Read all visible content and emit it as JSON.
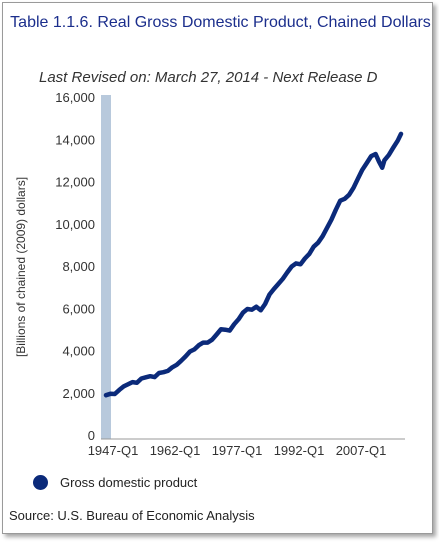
{
  "chart_data": {
    "type": "line",
    "title": "Table 1.1.6. Real Gross Domestic Product, Chained Dollars",
    "subtitle": "Last Revised on: March 27, 2014 - Next Release D",
    "ylabel": "[Billions of chained (2009) dollars]",
    "xlabel": "",
    "ylim": [
      0,
      16000
    ],
    "yticks": [
      "0",
      "2,000",
      "4,000",
      "6,000",
      "8,000",
      "10,000",
      "12,000",
      "14,000",
      "16,000"
    ],
    "xticks": [
      "1947-Q1",
      "1962-Q1",
      "1977-Q1",
      "1992-Q1",
      "2007-Q1"
    ],
    "xlim": [
      1947,
      2013.75
    ],
    "grid": false,
    "legend_position": "bottom-left",
    "series": [
      {
        "name": "Gross domestic product",
        "color": "#0b2a7a",
        "x": [
          1947,
          1948,
          1949,
          1950,
          1951,
          1952,
          1953,
          1954,
          1955,
          1956,
          1957,
          1958,
          1959,
          1960,
          1961,
          1962,
          1963,
          1964,
          1965,
          1966,
          1967,
          1968,
          1969,
          1970,
          1971,
          1972,
          1973,
          1974,
          1975,
          1976,
          1977,
          1978,
          1979,
          1980,
          1981,
          1982,
          1983,
          1984,
          1985,
          1986,
          1987,
          1988,
          1989,
          1990,
          1991,
          1992,
          1993,
          1994,
          1995,
          1996,
          1997,
          1998,
          1999,
          2000,
          2001,
          2002,
          2003,
          2004,
          2005,
          2006,
          2007,
          2008,
          2008.75,
          2009.5,
          2010,
          2011,
          2012,
          2013,
          2013.75
        ],
        "values": [
          1930,
          2000,
          1990,
          2180,
          2350,
          2450,
          2550,
          2520,
          2720,
          2780,
          2830,
          2790,
          2980,
          3020,
          3080,
          3250,
          3370,
          3560,
          3770,
          4000,
          4100,
          4300,
          4420,
          4420,
          4560,
          4800,
          5050,
          5030,
          4990,
          5290,
          5530,
          5840,
          6010,
          5980,
          6120,
          5950,
          6250,
          6700,
          6960,
          7200,
          7440,
          7740,
          8020,
          8170,
          8130,
          8400,
          8620,
          8960,
          9150,
          9460,
          9850,
          10240,
          10710,
          11140,
          11230,
          11420,
          11750,
          12180,
          12600,
          12920,
          13250,
          13350,
          13000,
          12700,
          13050,
          13300,
          13650,
          13980,
          14300
        ]
      }
    ]
  },
  "legend": {
    "label": "Gross domestic product"
  },
  "source": "Source: U.S. Bureau of Economic Analysis"
}
